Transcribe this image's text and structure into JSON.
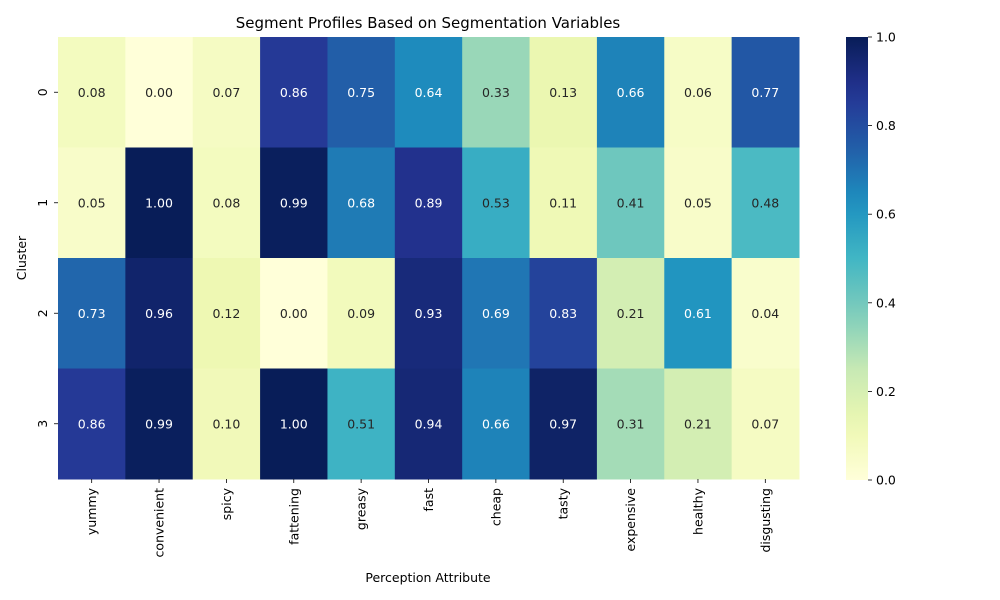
{
  "chart_data": {
    "type": "heatmap",
    "title": "Segment Profiles Based on Segmentation Variables",
    "xlabel": "Perception Attribute",
    "ylabel": "Cluster",
    "x_categories": [
      "yummy",
      "convenient",
      "spicy",
      "fattening",
      "greasy",
      "fast",
      "cheap",
      "tasty",
      "expensive",
      "healthy",
      "disgusting"
    ],
    "y_categories": [
      "0",
      "1",
      "2",
      "3"
    ],
    "values": [
      [
        0.08,
        0.0,
        0.07,
        0.86,
        0.75,
        0.64,
        0.33,
        0.13,
        0.66,
        0.06,
        0.77
      ],
      [
        0.05,
        1.0,
        0.08,
        0.99,
        0.68,
        0.89,
        0.53,
        0.11,
        0.41,
        0.05,
        0.48
      ],
      [
        0.73,
        0.96,
        0.12,
        0.0,
        0.09,
        0.93,
        0.69,
        0.83,
        0.21,
        0.61,
        0.04
      ],
      [
        0.86,
        0.99,
        0.1,
        1.0,
        0.51,
        0.94,
        0.66,
        0.97,
        0.31,
        0.21,
        0.07
      ]
    ],
    "colorscale": "YlGnBu",
    "vmin": 0.0,
    "vmax": 1.0,
    "colorbar_ticks": [
      "0.0",
      "0.2",
      "0.4",
      "0.6",
      "0.8",
      "1.0"
    ],
    "grid": false
  }
}
